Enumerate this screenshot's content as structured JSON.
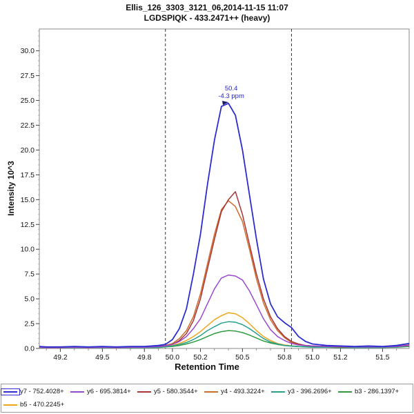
{
  "chart_data": {
    "type": "line",
    "title": "Ellis_126_3303_3121_06,2014-11-15 11:07",
    "subtitle": "LGDSPIQK - 433.2471++ (heavy)",
    "xlabel": "Retention Time",
    "ylabel": "Intensity 10^3",
    "xlim": [
      49.05,
      51.69
    ],
    "ylim": [
      0,
      32.2
    ],
    "x_ticks": [
      49.2,
      49.5,
      49.8,
      50.0,
      50.2,
      50.5,
      50.8,
      51.0,
      51.2,
      51.5
    ],
    "x_minor_step": 0.1,
    "y_ticks": [
      0,
      2.5,
      5,
      7.5,
      10,
      12.5,
      15,
      17.5,
      20,
      22.5,
      25,
      27.5,
      30
    ],
    "y_minor_step": 0.5,
    "grid": false,
    "legend_position": "bottom",
    "integration_boundaries": [
      49.95,
      50.85
    ],
    "annotation": {
      "x": 50.42,
      "y": 24.9,
      "lines": [
        "50.4",
        "-4.3 ppm"
      ],
      "color": "#2323cc",
      "marker": {
        "x": 50.38,
        "y": 24.75
      }
    },
    "x": [
      49.05,
      49.1,
      49.2,
      49.3,
      49.4,
      49.5,
      49.6,
      49.7,
      49.8,
      49.9,
      49.95,
      50.0,
      50.05,
      50.1,
      50.15,
      50.2,
      50.25,
      50.3,
      50.35,
      50.4,
      50.45,
      50.5,
      50.55,
      50.6,
      50.65,
      50.7,
      50.75,
      50.8,
      50.85,
      50.9,
      50.95,
      51.0,
      51.1,
      51.2,
      51.3,
      51.4,
      51.5,
      51.6,
      51.69
    ],
    "series": [
      {
        "name": "y7 - 752.4028+",
        "color": "#2b2bd0",
        "selected": true,
        "values": [
          0.2,
          0.15,
          0.15,
          0.2,
          0.15,
          0.2,
          0.15,
          0.2,
          0.2,
          0.3,
          0.4,
          0.9,
          2.0,
          4.0,
          7.5,
          11.5,
          16.5,
          21.0,
          24.4,
          24.7,
          23.5,
          20.0,
          15.5,
          11.0,
          7.0,
          4.5,
          3.2,
          2.6,
          2.1,
          1.2,
          0.7,
          0.45,
          0.3,
          0.25,
          0.2,
          0.25,
          0.2,
          0.3,
          0.5
        ]
      },
      {
        "name": "y6 - 695.3814+",
        "color": "#9a49cf",
        "selected": false,
        "values": [
          0.12,
          0.1,
          0.1,
          0.12,
          0.1,
          0.12,
          0.1,
          0.12,
          0.12,
          0.2,
          0.25,
          0.4,
          0.7,
          1.2,
          2.0,
          3.0,
          4.5,
          6.0,
          7.1,
          7.4,
          7.3,
          6.9,
          5.8,
          4.4,
          3.0,
          1.9,
          1.2,
          0.8,
          0.5,
          0.35,
          0.3,
          0.25,
          0.2,
          0.2,
          0.15,
          0.15,
          0.15,
          0.2,
          0.3
        ]
      },
      {
        "name": "y5 - 580.3544+",
        "color": "#a83434",
        "selected": false,
        "values": [
          0.12,
          0.1,
          0.1,
          0.15,
          0.1,
          0.15,
          0.1,
          0.15,
          0.15,
          0.2,
          0.25,
          0.4,
          0.8,
          1.5,
          2.8,
          5.0,
          8.0,
          11.0,
          13.8,
          15.0,
          15.8,
          13.5,
          10.5,
          7.5,
          5.0,
          3.2,
          2.0,
          1.2,
          0.7,
          0.45,
          0.3,
          0.25,
          0.2,
          0.15,
          0.15,
          0.2,
          0.15,
          0.2,
          0.35
        ]
      },
      {
        "name": "y4 - 493.3224+",
        "color": "#cc6b2a",
        "selected": false,
        "values": [
          0.12,
          0.1,
          0.12,
          0.15,
          0.1,
          0.15,
          0.12,
          0.15,
          0.15,
          0.2,
          0.3,
          0.5,
          1.0,
          1.8,
          3.2,
          5.5,
          8.5,
          11.5,
          14.0,
          14.9,
          14.3,
          12.8,
          10.0,
          7.0,
          4.6,
          2.9,
          1.8,
          1.1,
          0.6,
          0.4,
          0.3,
          0.25,
          0.2,
          0.15,
          0.15,
          0.15,
          0.15,
          0.2,
          0.3
        ]
      },
      {
        "name": "y3 - 396.2696+",
        "color": "#27a08e",
        "selected": false,
        "values": [
          0.1,
          0.08,
          0.08,
          0.1,
          0.08,
          0.1,
          0.08,
          0.1,
          0.1,
          0.12,
          0.18,
          0.25,
          0.4,
          0.6,
          0.9,
          1.3,
          1.8,
          2.2,
          2.55,
          2.7,
          2.65,
          2.4,
          2.0,
          1.5,
          1.0,
          0.65,
          0.45,
          0.3,
          0.22,
          0.18,
          0.15,
          0.12,
          0.12,
          0.1,
          0.1,
          0.1,
          0.1,
          0.15,
          0.25
        ]
      },
      {
        "name": "b3 - 286.1397+",
        "color": "#2e9b3f",
        "selected": false,
        "values": [
          0.1,
          0.08,
          0.08,
          0.08,
          0.08,
          0.08,
          0.08,
          0.08,
          0.1,
          0.1,
          0.15,
          0.2,
          0.3,
          0.45,
          0.65,
          0.9,
          1.2,
          1.5,
          1.7,
          1.8,
          1.75,
          1.6,
          1.35,
          1.05,
          0.75,
          0.55,
          0.4,
          0.3,
          0.25,
          0.2,
          0.18,
          0.15,
          0.12,
          0.1,
          0.1,
          0.1,
          0.1,
          0.12,
          0.2
        ]
      },
      {
        "name": "b5 - 470.2245+",
        "color": "#f0a51e",
        "selected": false,
        "values": [
          0.12,
          0.1,
          0.1,
          0.1,
          0.1,
          0.1,
          0.1,
          0.1,
          0.12,
          0.15,
          0.2,
          0.3,
          0.5,
          0.8,
          1.2,
          1.7,
          2.3,
          2.9,
          3.3,
          3.6,
          3.5,
          3.1,
          2.5,
          1.8,
          1.2,
          0.8,
          0.5,
          0.35,
          0.25,
          0.2,
          0.18,
          0.15,
          0.15,
          0.12,
          0.12,
          0.12,
          0.12,
          0.15,
          0.25
        ]
      }
    ]
  }
}
